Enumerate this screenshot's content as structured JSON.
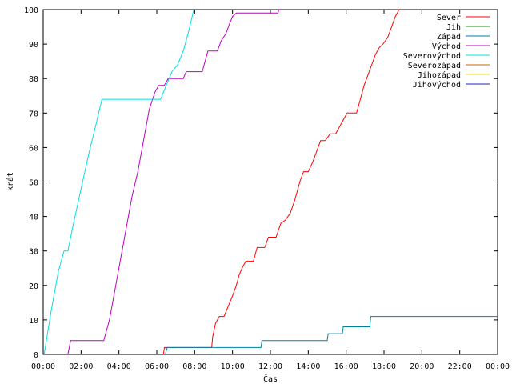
{
  "chart_data": {
    "type": "line",
    "xlabel": "Čas",
    "ylabel": "krát",
    "xlim": [
      0,
      24
    ],
    "ylim": [
      0,
      100
    ],
    "x_ticks": [
      0,
      2,
      4,
      6,
      8,
      10,
      12,
      14,
      16,
      18,
      20,
      22,
      24
    ],
    "x_tick_labels": [
      "00:00",
      "02:00",
      "04:00",
      "06:00",
      "08:00",
      "10:00",
      "12:00",
      "14:00",
      "16:00",
      "18:00",
      "20:00",
      "22:00",
      "00:00"
    ],
    "y_ticks": [
      0,
      10,
      20,
      30,
      40,
      50,
      60,
      70,
      80,
      90,
      100
    ],
    "y_tick_labels": [
      "0",
      "10",
      "20",
      "30",
      "40",
      "50",
      "60",
      "70",
      "80",
      "90",
      "100"
    ],
    "grid": false,
    "legend_position": "top-right",
    "series": [
      {
        "name": "Sever",
        "color": "#ff0000",
        "points": [
          [
            6.35,
            0
          ],
          [
            6.4,
            2
          ],
          [
            8.9,
            2
          ],
          [
            8.95,
            5
          ],
          [
            9.1,
            9
          ],
          [
            9.3,
            11
          ],
          [
            9.55,
            11
          ],
          [
            9.7,
            13
          ],
          [
            9.85,
            15
          ],
          [
            10.0,
            17
          ],
          [
            10.2,
            20
          ],
          [
            10.35,
            23
          ],
          [
            10.5,
            25
          ],
          [
            10.7,
            27
          ],
          [
            11.1,
            27
          ],
          [
            11.3,
            31
          ],
          [
            11.7,
            31
          ],
          [
            11.9,
            34
          ],
          [
            12.3,
            34
          ],
          [
            12.55,
            38
          ],
          [
            12.8,
            39
          ],
          [
            13.05,
            41
          ],
          [
            13.3,
            45
          ],
          [
            13.55,
            50
          ],
          [
            13.75,
            53
          ],
          [
            14.0,
            53
          ],
          [
            14.25,
            56
          ],
          [
            14.45,
            59
          ],
          [
            14.65,
            62
          ],
          [
            14.9,
            62
          ],
          [
            15.15,
            64
          ],
          [
            15.45,
            64
          ],
          [
            15.65,
            66
          ],
          [
            15.85,
            68
          ],
          [
            16.05,
            70
          ],
          [
            16.55,
            70
          ],
          [
            16.75,
            74
          ],
          [
            16.95,
            78
          ],
          [
            17.15,
            81
          ],
          [
            17.35,
            84
          ],
          [
            17.55,
            87
          ],
          [
            17.75,
            89
          ],
          [
            17.95,
            90
          ],
          [
            18.2,
            92
          ],
          [
            18.4,
            95
          ],
          [
            18.6,
            98
          ],
          [
            18.8,
            100
          ]
        ]
      },
      {
        "name": "Jih",
        "color": "#00a000",
        "points": []
      },
      {
        "name": "Západ",
        "color": "#0080a0",
        "points": [
          [
            6.45,
            0
          ],
          [
            6.55,
            2
          ],
          [
            11.5,
            2
          ],
          [
            11.55,
            4
          ],
          [
            15.0,
            4
          ],
          [
            15.05,
            6
          ],
          [
            15.8,
            6
          ],
          [
            15.85,
            8
          ],
          [
            17.25,
            8
          ],
          [
            17.3,
            11
          ],
          [
            24,
            11
          ]
        ]
      },
      {
        "name": "Východ",
        "color": "#c000c0",
        "points": [
          [
            1.3,
            0
          ],
          [
            1.45,
            4
          ],
          [
            3.2,
            4
          ],
          [
            3.5,
            10
          ],
          [
            3.8,
            19
          ],
          [
            4.1,
            28
          ],
          [
            4.4,
            37
          ],
          [
            4.7,
            46
          ],
          [
            5.0,
            53
          ],
          [
            5.3,
            62
          ],
          [
            5.6,
            71
          ],
          [
            5.9,
            76
          ],
          [
            6.1,
            78
          ],
          [
            6.4,
            78
          ],
          [
            6.6,
            80
          ],
          [
            7.4,
            80
          ],
          [
            7.55,
            82
          ],
          [
            8.4,
            82
          ],
          [
            8.7,
            88
          ],
          [
            9.2,
            88
          ],
          [
            9.4,
            91
          ],
          [
            9.65,
            93
          ],
          [
            9.85,
            96
          ],
          [
            10.0,
            98
          ],
          [
            10.2,
            99
          ],
          [
            12.4,
            99
          ],
          [
            12.45,
            100
          ]
        ]
      },
      {
        "name": "Severovýchod",
        "color": "#00e0e0",
        "points": [
          [
            0.05,
            0
          ],
          [
            0.4,
            12
          ],
          [
            0.8,
            24
          ],
          [
            1.1,
            30
          ],
          [
            1.3,
            30
          ],
          [
            1.6,
            38
          ],
          [
            2.0,
            48
          ],
          [
            2.4,
            58
          ],
          [
            2.8,
            67
          ],
          [
            3.1,
            74
          ],
          [
            6.2,
            74
          ],
          [
            6.5,
            78
          ],
          [
            6.8,
            82
          ],
          [
            7.1,
            84
          ],
          [
            7.4,
            88
          ],
          [
            7.7,
            94
          ],
          [
            7.95,
            100
          ]
        ]
      },
      {
        "name": "Severozápad",
        "color": "#d06000",
        "points": []
      },
      {
        "name": "Jihozápad",
        "color": "#f0e000",
        "points": []
      },
      {
        "name": "Jihovýchod",
        "color": "#2020c0",
        "points": []
      }
    ]
  }
}
